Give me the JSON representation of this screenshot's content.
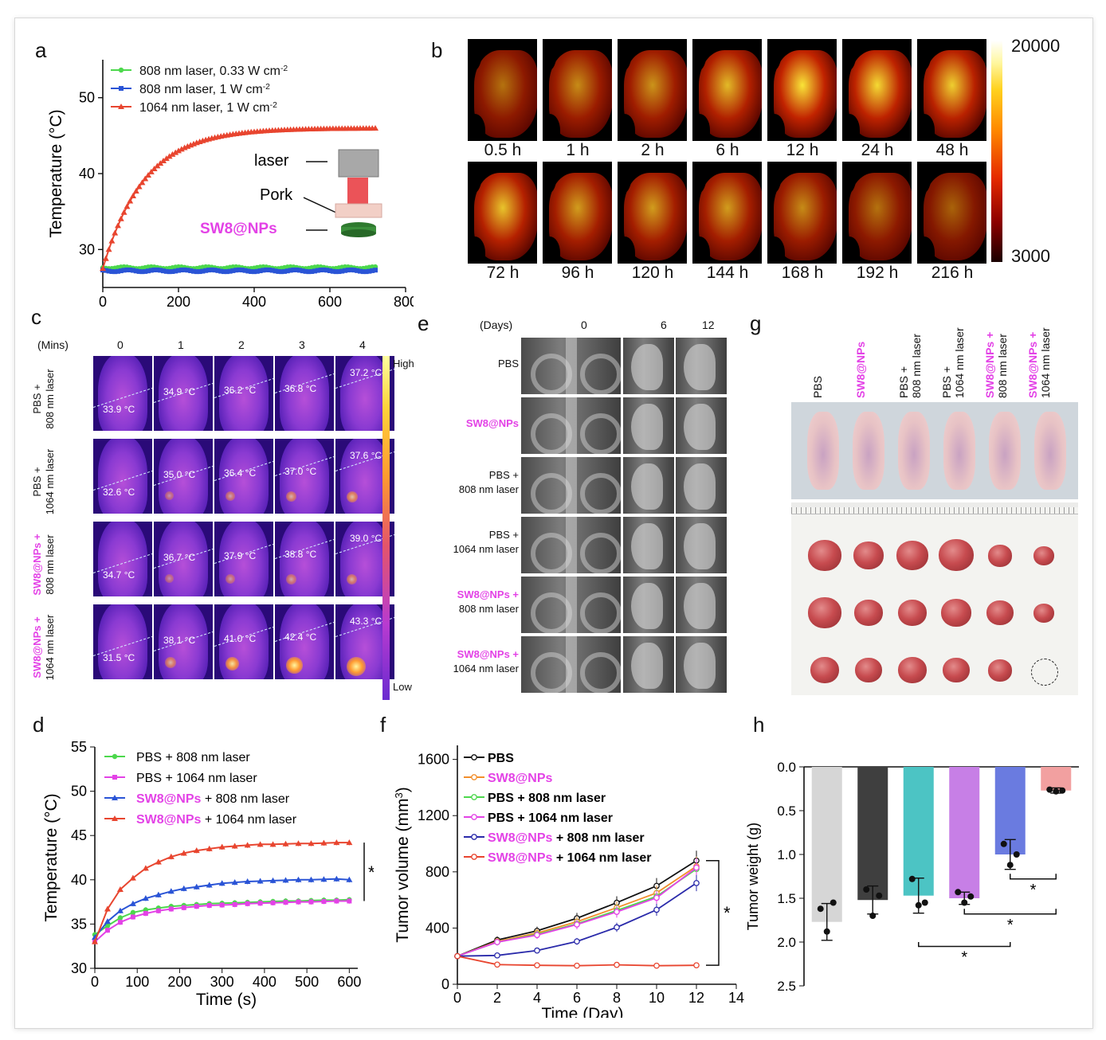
{
  "panel_letters": {
    "a": "a",
    "b": "b",
    "c": "c",
    "d": "d",
    "e": "e",
    "f": "f",
    "g": "g",
    "h": "h"
  },
  "panel_a": {
    "ylabel": "Temperature (°C)",
    "xlabel": "Time (s)",
    "legend": [
      "808 nm laser, 0.33 W cm-2",
      "808 nm laser, 1 W cm-2",
      "1064 nm laser, 1 W cm-2"
    ],
    "inset": {
      "laser": "laser",
      "pork": "Pork",
      "sample": "SW8@NPs"
    },
    "xticks": [
      "0",
      "200",
      "400",
      "600",
      "800"
    ],
    "yticks": [
      "30",
      "40",
      "50"
    ]
  },
  "panel_b": {
    "row1": [
      "0.5 h",
      "1 h",
      "2 h",
      "6 h",
      "12 h",
      "24 h",
      "48 h"
    ],
    "row2": [
      "72 h",
      "96 h",
      "120 h",
      "144 h",
      "168 h",
      "192 h",
      "216 h"
    ],
    "intensity": [
      0.35,
      0.5,
      0.55,
      0.75,
      0.95,
      0.9,
      0.85,
      0.8,
      0.6,
      0.6,
      0.6,
      0.5,
      0.35,
      0.25
    ],
    "scale_max": "20000",
    "scale_min": "3000"
  },
  "panel_c": {
    "mins_label": "(Mins)",
    "cols": [
      "0",
      "1",
      "2",
      "3",
      "4"
    ],
    "rows": [
      {
        "l1": "PBS +",
        "l2": "808 nm laser",
        "magenta": false,
        "temps": [
          "33.9 °C",
          "34.9 °C",
          "36.2 °C",
          "36.8 °C",
          "37.2 °C"
        ]
      },
      {
        "l1": "PBS +",
        "l2": "1064 nm laser",
        "magenta": false,
        "temps": [
          "32.6 °C",
          "35.0 °C",
          "36.4 °C",
          "37.0 °C",
          "37.6 °C"
        ]
      },
      {
        "l1": "SW8@NPs +",
        "l2": "808 nm laser",
        "magenta": true,
        "temps": [
          "34.7 °C",
          "36.7 °C",
          "37.9 °C",
          "38.8 °C",
          "39.0 °C"
        ]
      },
      {
        "l1": "SW8@NPs +",
        "l2": "1064 nm laser",
        "magenta": true,
        "temps": [
          "31.5 °C",
          "38.1 °C",
          "41.0 °C",
          "42.4 °C",
          "43.3 °C"
        ]
      }
    ],
    "high": "High",
    "low": "Low"
  },
  "panel_e": {
    "days_label": "(Days)",
    "days": [
      "0",
      "6",
      "12"
    ],
    "groups": [
      {
        "l1": "PBS",
        "l2": "",
        "magenta": false
      },
      {
        "l1": "SW8@NPs",
        "l2": "",
        "magenta": true
      },
      {
        "l1": "PBS +",
        "l2": "808 nm laser",
        "magenta": false
      },
      {
        "l1": "PBS +",
        "l2": "1064 nm laser",
        "magenta": false
      },
      {
        "l1": "SW8@NPs +",
        "l2": "808 nm laser",
        "magenta": true
      },
      {
        "l1": "SW8@NPs +",
        "l2": "1064 nm laser",
        "magenta": true
      }
    ]
  },
  "panel_g": {
    "headers": [
      {
        "l1": "PBS",
        "l2": "",
        "magenta": false
      },
      {
        "l1": "SW8@NPs",
        "l2": "",
        "magenta": true
      },
      {
        "l1": "PBS +",
        "l2": "808 nm laser",
        "magenta": false
      },
      {
        "l1": "PBS +",
        "l2": "1064 nm laser",
        "magenta": false
      },
      {
        "l1": "SW8@NPs +",
        "l2": "808 nm laser",
        "magenta": true
      },
      {
        "l1": "SW8@NPs +",
        "l2": "1064 nm laser",
        "magenta": true
      }
    ]
  },
  "chart_data": [
    {
      "id": "a",
      "type": "line",
      "xlabel": "Time (s)",
      "ylabel": "Temperature (°C)",
      "xlim": [
        0,
        800
      ],
      "ylim": [
        25,
        55
      ],
      "series": [
        {
          "name": "808 nm laser, 0.33 W cm-2",
          "color": "#4cd84c",
          "x": [
            0,
            720
          ],
          "y": [
            27.6,
            27.6
          ]
        },
        {
          "name": "808 nm laser, 1 W cm-2",
          "color": "#2a54d6",
          "x": [
            0,
            720
          ],
          "y": [
            27.2,
            27.2
          ]
        },
        {
          "name": "1064 nm laser, 1 W cm-2",
          "color": "#e8452f",
          "x": [
            0,
            20,
            50,
            100,
            150,
            200,
            250,
            300,
            400,
            500,
            600,
            720
          ],
          "y": [
            27.5,
            31,
            34.5,
            38.5,
            41.2,
            43,
            44.2,
            45,
            45.7,
            45.9,
            46,
            46
          ]
        }
      ]
    },
    {
      "id": "d",
      "type": "line",
      "xlabel": "Time (s)",
      "ylabel": "Temperature (°C)",
      "xlim": [
        0,
        620
      ],
      "ylim": [
        30,
        55
      ],
      "series": [
        {
          "name": "PBS + 808 nm laser",
          "color": "#4cd84c",
          "x": [
            0,
            30,
            60,
            90,
            120,
            150,
            180,
            210,
            240,
            270,
            300,
            330,
            360,
            390,
            420,
            450,
            480,
            510,
            540,
            570,
            600
          ],
          "y": [
            33.8,
            34.8,
            35.7,
            36.3,
            36.6,
            36.8,
            37.0,
            37.1,
            37.2,
            37.3,
            37.35,
            37.4,
            37.45,
            37.5,
            37.55,
            37.6,
            37.6,
            37.65,
            37.7,
            37.7,
            37.75
          ]
        },
        {
          "name": "PBS + 1064 nm laser",
          "color": "#e342e6",
          "x": [
            0,
            30,
            60,
            90,
            120,
            150,
            180,
            210,
            240,
            270,
            300,
            330,
            360,
            390,
            420,
            450,
            480,
            510,
            540,
            570,
            600
          ],
          "y": [
            33.0,
            34.3,
            35.2,
            35.8,
            36.2,
            36.5,
            36.7,
            36.85,
            37.0,
            37.1,
            37.15,
            37.2,
            37.3,
            37.35,
            37.4,
            37.45,
            37.5,
            37.5,
            37.55,
            37.6,
            37.6
          ]
        },
        {
          "name": "SW8@NPs + 808 nm laser",
          "color": "#2a54d6",
          "x": [
            0,
            30,
            60,
            90,
            120,
            150,
            180,
            210,
            240,
            270,
            300,
            330,
            360,
            390,
            420,
            450,
            480,
            510,
            540,
            570,
            600
          ],
          "y": [
            33.5,
            35.3,
            36.5,
            37.3,
            37.9,
            38.3,
            38.7,
            39.0,
            39.2,
            39.4,
            39.6,
            39.7,
            39.8,
            39.85,
            39.9,
            39.95,
            40.0,
            40.0,
            40.05,
            40.1,
            40.0
          ]
        },
        {
          "name": "SW8@NPs + 1064 nm laser",
          "color": "#e8452f",
          "x": [
            0,
            30,
            60,
            90,
            120,
            150,
            180,
            210,
            240,
            270,
            300,
            330,
            360,
            390,
            420,
            450,
            480,
            510,
            540,
            570,
            600
          ],
          "y": [
            33.0,
            36.7,
            38.9,
            40.2,
            41.3,
            42.0,
            42.6,
            43.0,
            43.3,
            43.5,
            43.7,
            43.8,
            43.9,
            44.0,
            44.0,
            44.05,
            44.1,
            44.1,
            44.15,
            44.2,
            44.2
          ]
        }
      ],
      "annotation": "*"
    },
    {
      "id": "f",
      "type": "line",
      "xlabel": "Time (Day)",
      "ylabel": "Tumor volume (mm3)",
      "xlim": [
        0,
        14
      ],
      "ylim": [
        0,
        1700
      ],
      "x": [
        0,
        2,
        4,
        6,
        8,
        10,
        12
      ],
      "series": [
        {
          "name": "PBS",
          "color": "#111111",
          "y": [
            200,
            315,
            380,
            470,
            580,
            700,
            880
          ]
        },
        {
          "name": "SW8@NPs",
          "color": "#f28e2b",
          "y": [
            200,
            305,
            365,
            445,
            545,
            650,
            840
          ]
        },
        {
          "name": "PBS + 808 nm laser",
          "color": "#4cd84c",
          "y": [
            200,
            300,
            355,
            430,
            525,
            625,
            820
          ]
        },
        {
          "name": "PBS + 1064 nm laser",
          "color": "#e342e6",
          "y": [
            200,
            300,
            350,
            425,
            515,
            615,
            830
          ]
        },
        {
          "name": "SW8@NPs + 808 nm laser",
          "color": "#2a2aaa",
          "y": [
            200,
            205,
            240,
            305,
            405,
            530,
            720
          ]
        },
        {
          "name": "SW8@NPs + 1064 nm laser",
          "color": "#e8452f",
          "y": [
            200,
            140,
            135,
            132,
            138,
            132,
            135
          ]
        }
      ],
      "annotation": "*"
    },
    {
      "id": "h",
      "type": "bar",
      "ylabel": "Tumor weight (g)",
      "ylim": [
        0,
        2.5
      ],
      "inverted": true,
      "categories": [
        "PBS",
        "SW8@NPs",
        "PBS + 808 nm laser",
        "PBS + 1064 nm laser",
        "SW8@NPs + 808 nm laser",
        "SW8@NPs + 1064 nm laser"
      ],
      "values": [
        1.77,
        1.52,
        1.47,
        1.5,
        1.0,
        0.27
      ],
      "errors": [
        0.21,
        0.16,
        0.2,
        0.07,
        0.17,
        0.03
      ],
      "colors": [
        "#d6d6d6",
        "#3f3f3f",
        "#4cc4c4",
        "#c77fe6",
        "#6a7be0",
        "#f2a0a0"
      ],
      "annotations": [
        "*",
        "*",
        "*"
      ]
    }
  ]
}
